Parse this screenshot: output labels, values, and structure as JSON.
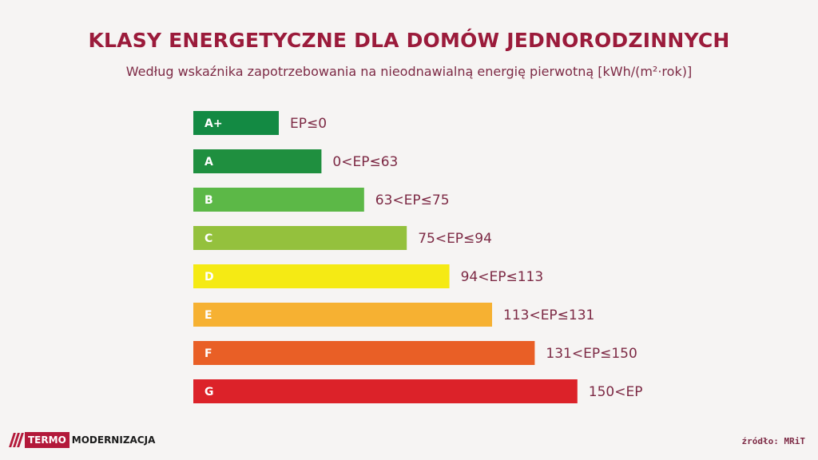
{
  "chart_data": {
    "type": "bar",
    "orientation": "horizontal",
    "title": "KLASY ENERGETYCZNE DLA DOMÓW JEDNORODZINNYCH",
    "subtitle": "Według wskaźnika zapotrzebowania na nieodnawialną energię pierwotną [kWh/(m²·rok)]",
    "categories": [
      "A+",
      "A",
      "B",
      "C",
      "D",
      "E",
      "F",
      "G"
    ],
    "range_labels": [
      "EP≤0",
      "0<EP≤63",
      "63<EP≤75",
      "75<EP≤94",
      "94<EP≤113",
      "113<EP≤131",
      "131<EP≤150",
      "150<EP"
    ],
    "values": [
      1,
      2,
      3,
      4,
      5,
      6,
      7,
      8
    ],
    "colors": [
      "#138a43",
      "#1f8f3f",
      "#5cb847",
      "#94c13d",
      "#f5ea14",
      "#f6b132",
      "#e95f26",
      "#dc2229"
    ],
    "legend": "none",
    "grid": false
  },
  "brand": {
    "logo_part1": "TERMO",
    "logo_part2": "MODERNIZACJA",
    "accent": "#b3193a"
  },
  "source": "źródło: MRiT"
}
